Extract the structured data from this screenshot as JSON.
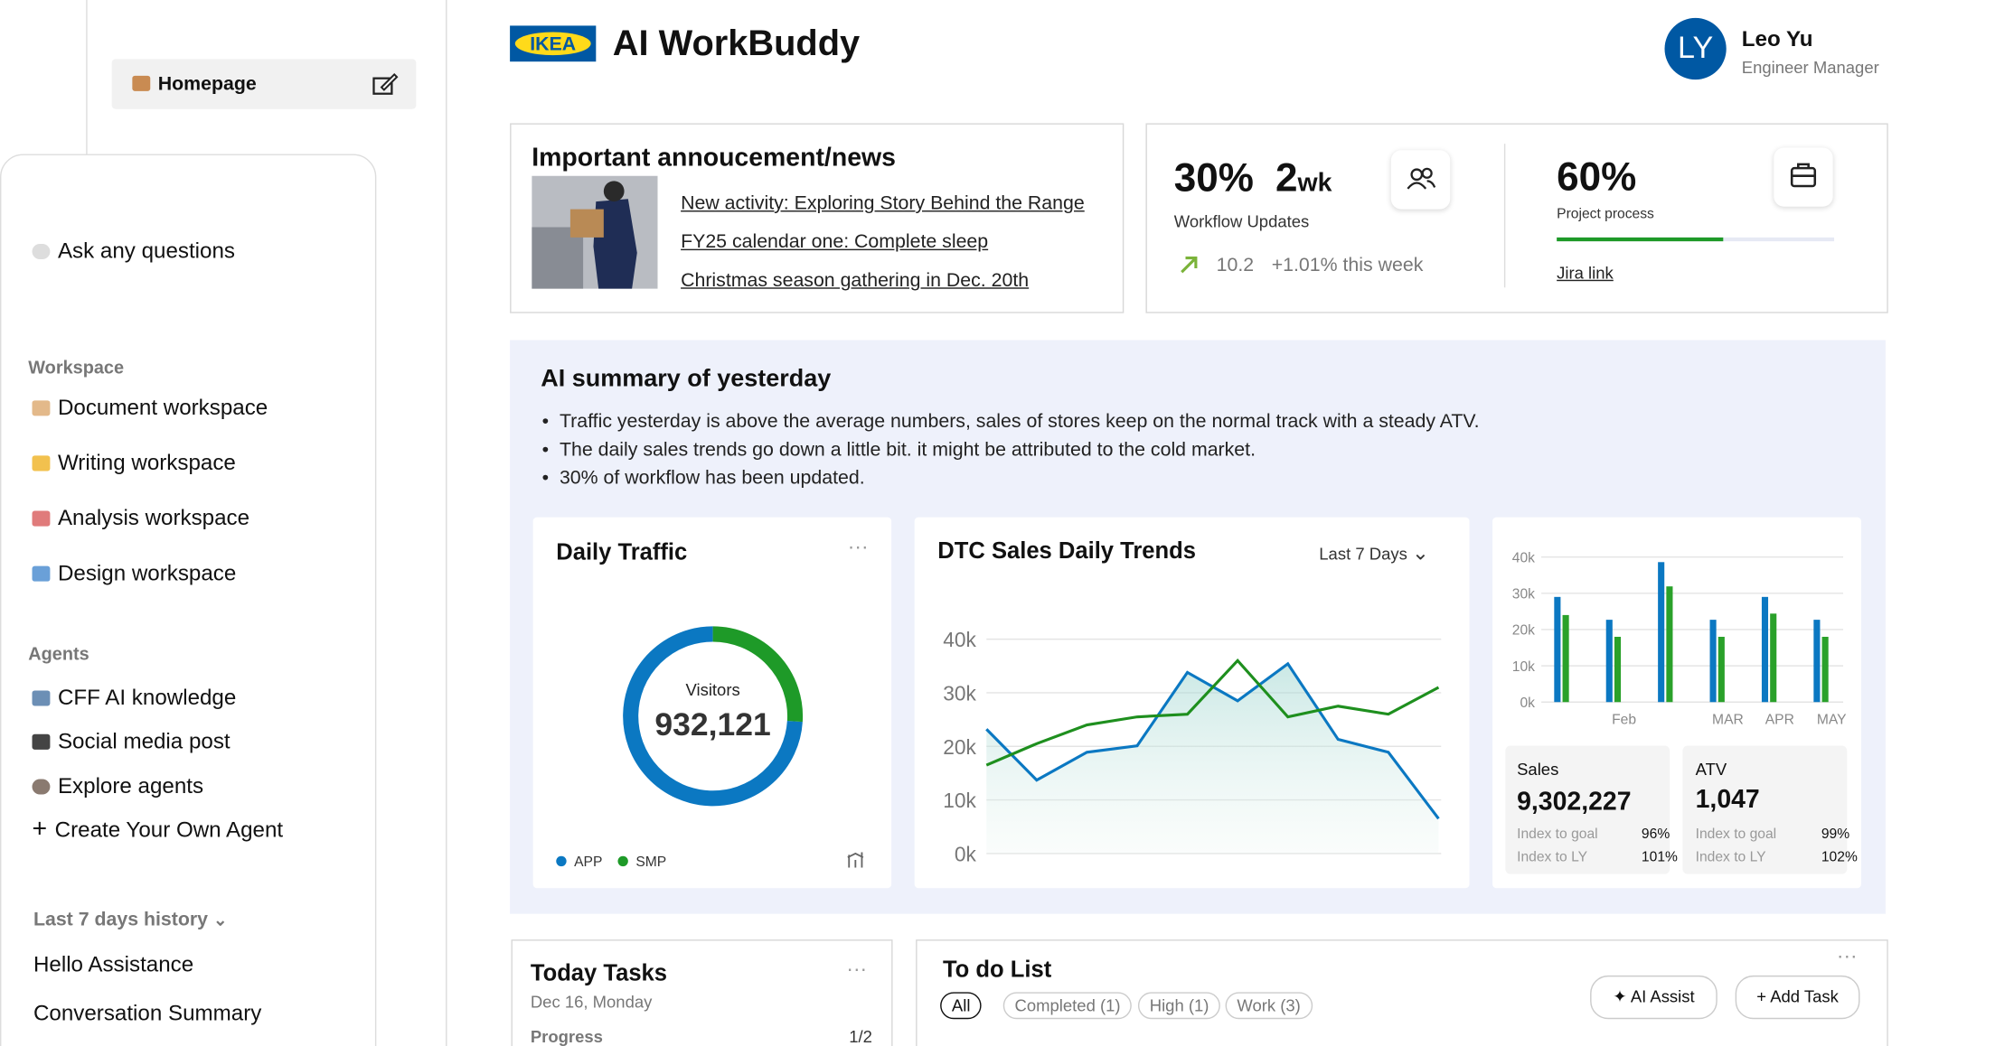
{
  "sidebar": {
    "homepage": "Homepage",
    "ask": "Ask any questions",
    "workspace_heading": "Workspace",
    "workspaces": [
      "Document workspace",
      "Writing workspace",
      "Analysis workspace",
      "Design workspace"
    ],
    "agents_heading": "Agents",
    "agents": [
      "CFF AI knowledge",
      "Social media post",
      "Explore agents",
      "Create Your Own Agent"
    ],
    "history_heading": "Last 7 days history",
    "history": [
      "Hello Assistance",
      "Conversation Summary"
    ]
  },
  "header": {
    "logo": "IKEA",
    "title": "AI WorkBuddy",
    "user_initials": "LY",
    "user_name": "Leo Yu",
    "user_role": "Engineer Manager"
  },
  "announcement": {
    "title": "Important annoucement/news",
    "links": [
      "New activity: Exploring Story Behind the Range",
      "FY25 calendar one: Complete sleep",
      "Christmas season gathering in Dec. 20th"
    ]
  },
  "stats": {
    "workflow_percent": "30%",
    "workflow_duration": "2",
    "workflow_unit": "wk",
    "workflow_label": "Workflow Updates",
    "trend_value": "10.2",
    "trend_change": "+1.01% this week",
    "project": {
      "value": 60,
      "label": "60%"
    },
    "project_label": "Project process",
    "jira_link": "Jira link"
  },
  "summary": {
    "title": "AI summary of yesterday",
    "bullets": [
      "Traffic yesterday is above the average numbers, sales of stores keep on the normal track with a steady ATV.",
      "The daily sales trends go down a little bit. it might be attributed to the cold market.",
      "30% of workflow has been updated."
    ]
  },
  "charts": {
    "daily_traffic": {
      "type": "pie",
      "title": "Daily Traffic",
      "center_label": "Visitors",
      "center_value": "932,121",
      "series": [
        {
          "name": "APP",
          "color": "#0b78c2",
          "value": 74
        },
        {
          "name": "SMP",
          "color": "#1e9a28",
          "value": 26
        }
      ]
    },
    "dtc_sales": {
      "type": "line",
      "title": "DTC Sales Daily Trends",
      "range_selector": "Last 7 Days",
      "ylim": [
        0,
        40000
      ],
      "yticks": [
        {
          "value": 0,
          "label": "0k"
        },
        {
          "value": 10000,
          "label": "10k"
        },
        {
          "value": 20000,
          "label": "20k"
        },
        {
          "value": 30000,
          "label": "30k"
        },
        {
          "value": 40000,
          "label": "40k"
        }
      ],
      "grid": true,
      "series": [
        {
          "color": "#0b78c2",
          "values": [
            23200,
            13700,
            18900,
            20100,
            33800,
            28500,
            35400,
            21300,
            18900,
            6500
          ]
        },
        {
          "color": "#1e8f1e",
          "values": [
            16500,
            20500,
            24000,
            25500,
            26000,
            36000,
            25500,
            27500,
            26000,
            31000
          ]
        }
      ]
    },
    "monthly": {
      "type": "bar",
      "categories": [
        null,
        "Feb",
        null,
        "MAR",
        "APR",
        "MAY"
      ],
      "ylim": [
        0,
        40000
      ],
      "yticks": [
        {
          "value": 0,
          "label": "0k"
        },
        {
          "value": 10000,
          "label": "10k"
        },
        {
          "value": 20000,
          "label": "20k"
        },
        {
          "value": 30000,
          "label": "30k"
        },
        {
          "value": 40000,
          "label": "40k"
        }
      ],
      "grid": true,
      "series": [
        {
          "color": "#0b78c2",
          "values": [
            29000,
            22700,
            38600,
            22700,
            29000,
            22700
          ]
        },
        {
          "color": "#2aa12a",
          "values": [
            24000,
            18000,
            31900,
            18000,
            24400,
            18000
          ]
        }
      ]
    }
  },
  "sales_cards": [
    {
      "label": "Sales",
      "value": "9,302,227",
      "goal_label": "Index to goal",
      "goal": "96%",
      "ly_label": "Index to LY",
      "ly": "101%"
    },
    {
      "label": "ATV",
      "value": "1,047",
      "goal_label": "Index to goal",
      "goal": "99%",
      "ly_label": "Index to LY",
      "ly": "102%"
    }
  ],
  "tasks": {
    "title": "Today Tasks",
    "date": "Dec 16, Monday",
    "progress_label": "Progress",
    "progress": "1/2"
  },
  "todo": {
    "title": "To do List",
    "filters": [
      "All",
      "Completed (1)",
      "High (1)",
      "Work (3)"
    ],
    "ai_assist": "AI Assist",
    "add_task": "Add Task"
  }
}
